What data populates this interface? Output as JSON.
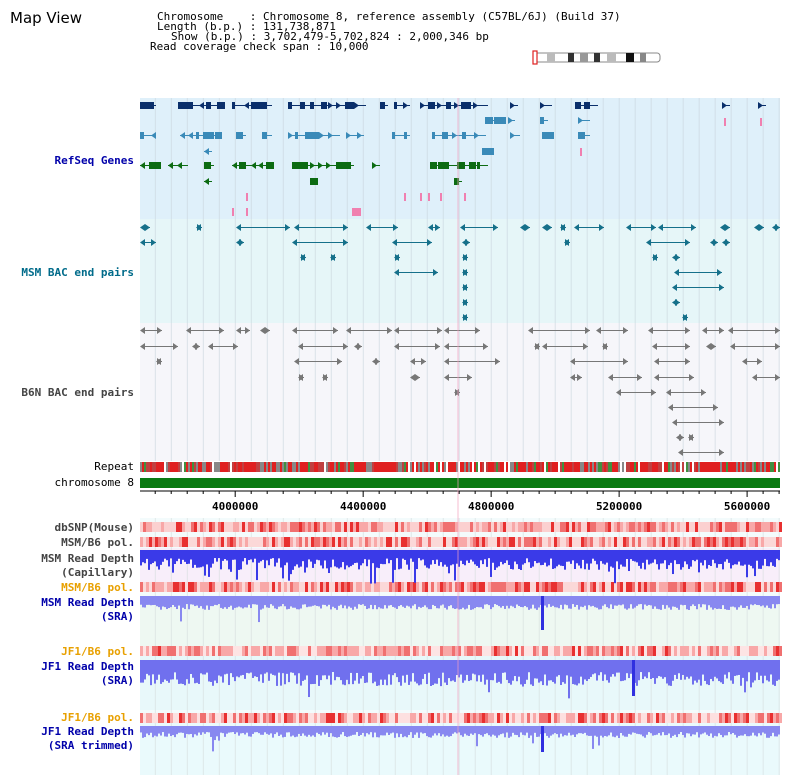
{
  "title": "Map View",
  "info": {
    "chromosome_label": "Chromosome",
    "chromosome_value": ": Chromosome 8, reference assembly (C57BL/6J) (Build 37)",
    "length_label": "Length (b.p.)",
    "length_value": ": 131,738,871",
    "show_label": "Show (b.p.)",
    "show_value": ": 3,702,479-5,702,824 : 2,000,346 bp",
    "coverage_label": "Read coverage check span",
    "coverage_value": ": 10,000"
  },
  "tracks": {
    "refseq": "RefSeq Genes",
    "msm_bac": "MSM BAC end pairs",
    "b6n_bac": "B6N BAC end pairs",
    "repeat": "Repeat",
    "chromosome": "chromosome 8",
    "dbsnp": "dbSNP(Mouse)",
    "msm_b6_pol_1": "MSM/B6 pol.",
    "msm_depth_cap_1": "MSM Read Depth",
    "msm_depth_cap_2": "(Capillary)",
    "msm_b6_pol_2": "MSM/B6 pol.",
    "msm_depth_sra_1": "MSM Read Depth",
    "msm_depth_sra_2": "(SRA)",
    "jf1_b6_pol_1": "JF1/B6 pol.",
    "jf1_depth_sra_1": "JF1 Read Depth",
    "jf1_depth_sra_2": "(SRA)",
    "jf1_b6_pol_2": "JF1/B6 pol.",
    "jf1_depth_trim_1": "JF1 Read Depth",
    "jf1_depth_trim_2": "(SRA trimmed)"
  },
  "axis": {
    "ticks": [
      "4000000",
      "4400000",
      "4800000",
      "5200000",
      "5600000"
    ],
    "start": 3702479,
    "end": 5702824
  },
  "colors": {
    "refseq_bg": "#dff0fa",
    "msm_bg": "#e6f6f8",
    "b6n_bg": "#f6f6fa",
    "dark_blue": "#0a2f6b",
    "mid_blue": "#3a8ab8",
    "green": "#0c6b12",
    "teal": "#15708a",
    "gray": "#777777",
    "label_blue": "#0000aa",
    "label_teal": "#006b8a",
    "label_orange": "#e8a000",
    "label_gray": "#444444"
  }
}
